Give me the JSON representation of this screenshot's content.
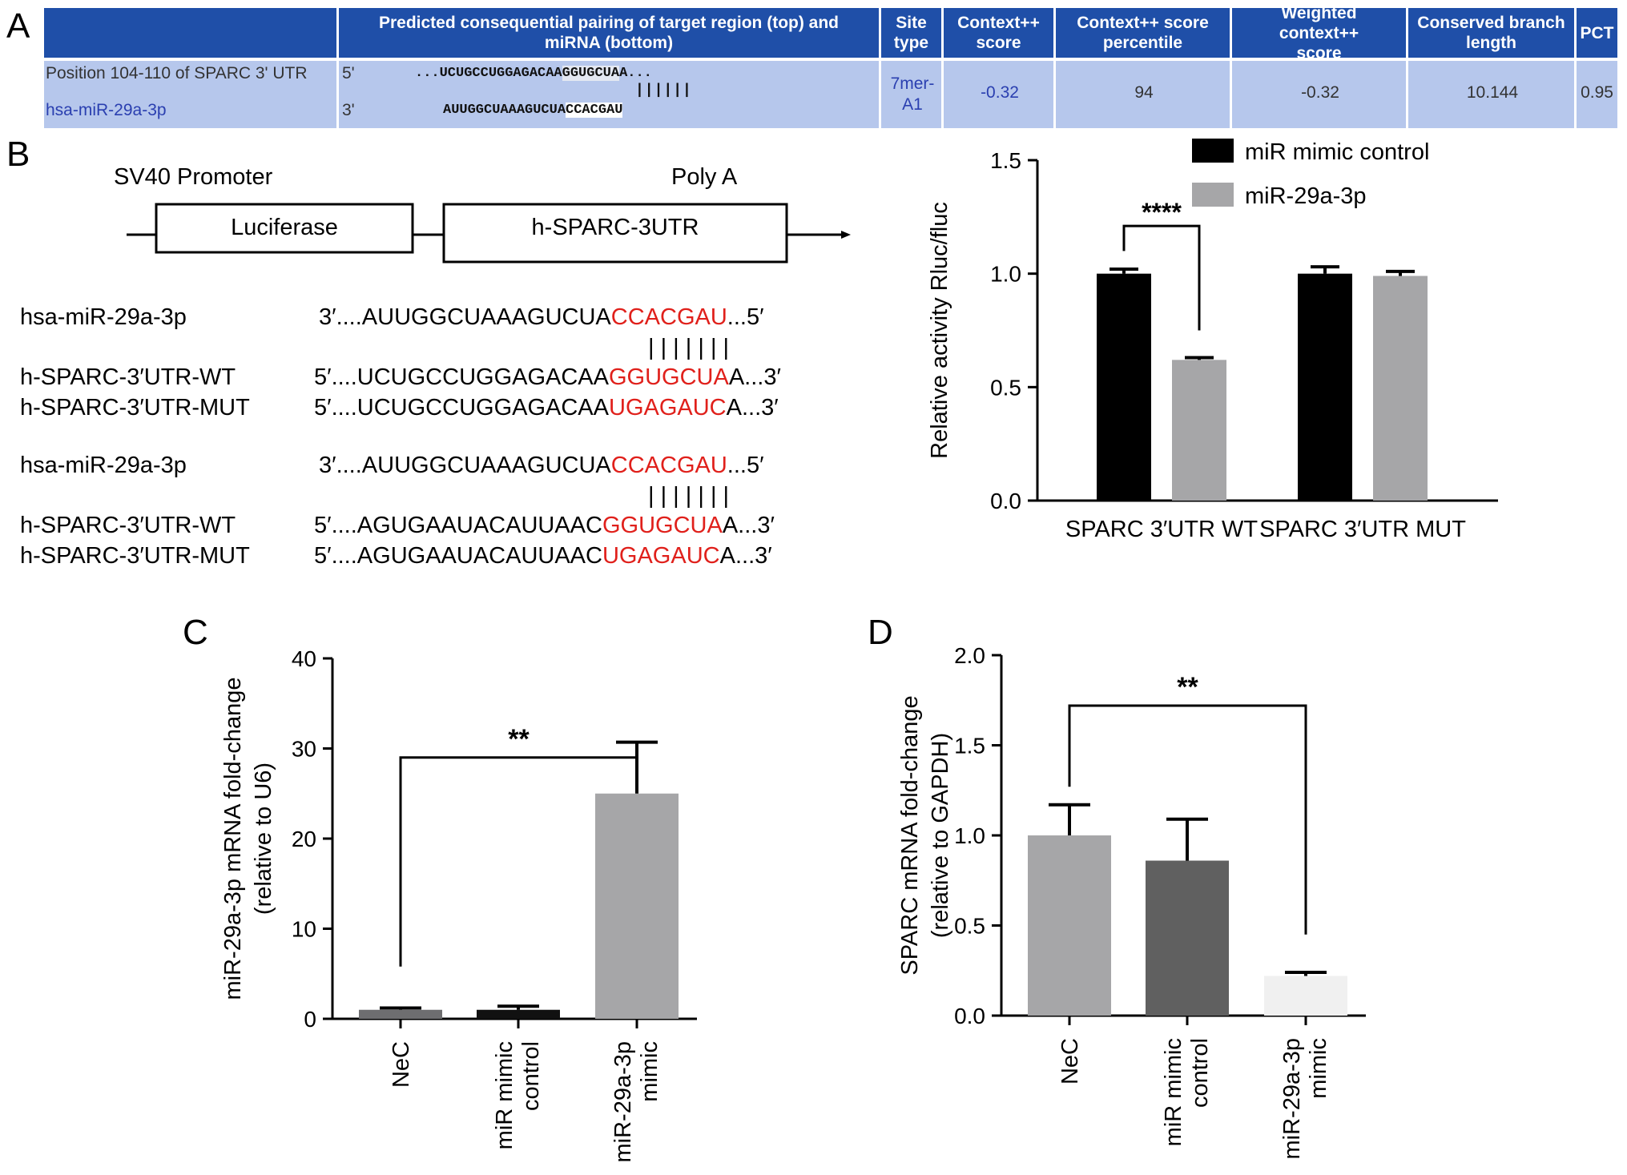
{
  "panels": {
    "A": "A",
    "B": "B",
    "C": "C",
    "D": "D"
  },
  "tableA": {
    "headers": {
      "pairing": "Predicted consequential pairing of target region (top) and miRNA (bottom)",
      "site_type": "Site type",
      "context_score": "Context++ score",
      "percentile": "Context++ score percentile",
      "weighted": "Weighted context++ score",
      "branch": "Conserved branch length",
      "pct": "PCT"
    },
    "row": {
      "position": "Position 104-110 of SPARC 3' UTR",
      "mirna": "hsa-miR-29a-3p",
      "five": "5'",
      "three": "3'",
      "target_seq_prefix": "...UCUGCCUGGAGACAA",
      "target_seq_site": "GGUGCUA",
      "target_seq_suffix": "A...",
      "pair_marks": "||||||",
      "mirna_seq_prefix": "AUUGGCUAAAGUCUA",
      "mirna_seq_site": "CCACGAU",
      "site_type": "7mer-A1",
      "context_score": "-0.32",
      "percentile": "94",
      "weighted": "-0.32",
      "branch": "10.144",
      "pct": "0.95"
    }
  },
  "diagramB": {
    "promoter": "SV40 Promoter",
    "polyA": "Poly A",
    "box1": "Luciferase",
    "box2": "h-SPARC-3UTR",
    "rows": [
      {
        "label": "hsa-miR-29a-3p",
        "pre": "3′....AUUGGCUAAAGUCUA",
        "site": "CCACGAU",
        "post": "...5′"
      },
      {
        "label": "h-SPARC-3′UTR-WT",
        "pre": "5′....UCUGCCUGGAGACAA",
        "site": "GGUGCUA",
        "post": "A...3′"
      },
      {
        "label": "h-SPARC-3′UTR-MUT",
        "pre": "5′....UCUGCCUGGAGACAA",
        "site": "UGAGAUC",
        "post": "A...3′"
      },
      {
        "label": "hsa-miR-29a-3p",
        "pre": "3′....AUUGGCUAAAGUCUA",
        "site": "CCACGAU",
        "post": "...5′"
      },
      {
        "label": "h-SPARC-3′UTR-WT",
        "pre": "5′....AGUGAAUACAUUAAC",
        "site": "GGUGCUA",
        "post": "A...3′"
      },
      {
        "label": "h-SPARC-3′UTR-MUT",
        "pre": "5′....AGUGAAUACAUUAAC",
        "site": "UGAGAUC",
        "post": "A...3′"
      }
    ],
    "pair_marks": "| | | | | | |"
  },
  "chart_data": [
    {
      "id": "B",
      "type": "bar",
      "categories": [
        "SPARC 3′UTR WT",
        "SPARC 3′UTR MUT"
      ],
      "series": [
        {
          "name": "miR mimic control",
          "values": [
            1.0,
            1.0
          ],
          "errors": [
            0.02,
            0.03
          ],
          "color": "#000000"
        },
        {
          "name": "miR-29a-3p",
          "values": [
            0.62,
            0.99
          ],
          "errors": [
            0.01,
            0.02
          ],
          "color": "#a6a6a8"
        }
      ],
      "ylabel": "Relative activity Rluc/fluc",
      "ylim": [
        0,
        1.5
      ],
      "yticks": [
        "0.0",
        "0.5",
        "1.0",
        "1.5"
      ],
      "legend": "top-right",
      "significance": "****"
    },
    {
      "id": "C",
      "type": "bar",
      "categories": [
        "NeC",
        "miR mimic control",
        "miR-29a-3p mimic"
      ],
      "values": [
        1.0,
        1.0,
        25.0
      ],
      "errors": [
        0.2,
        0.4,
        5.7
      ],
      "colors": [
        "#6e6e70",
        "#111111",
        "#a6a6a8"
      ],
      "ylabel": "miR-29a-3p mRNA fold-change (relative to U6)",
      "ylim": [
        0,
        40
      ],
      "yticks": [
        "0",
        "10",
        "20",
        "30",
        "40"
      ],
      "significance": "**"
    },
    {
      "id": "D",
      "type": "bar",
      "categories": [
        "NeC",
        "miR mimic control",
        "miR-29a-3p mimic"
      ],
      "values": [
        1.0,
        0.86,
        0.22
      ],
      "errors": [
        0.17,
        0.23,
        0.02
      ],
      "colors": [
        "#a6a6a8",
        "#606060",
        "#f0f0f0"
      ],
      "ylabel": "SPARC mRNA fold-change (relative to GAPDH)",
      "ylim": [
        0,
        2.0
      ],
      "yticks": [
        "0.0",
        "0.5",
        "1.0",
        "1.5",
        "2.0"
      ],
      "significance": "**"
    }
  ]
}
